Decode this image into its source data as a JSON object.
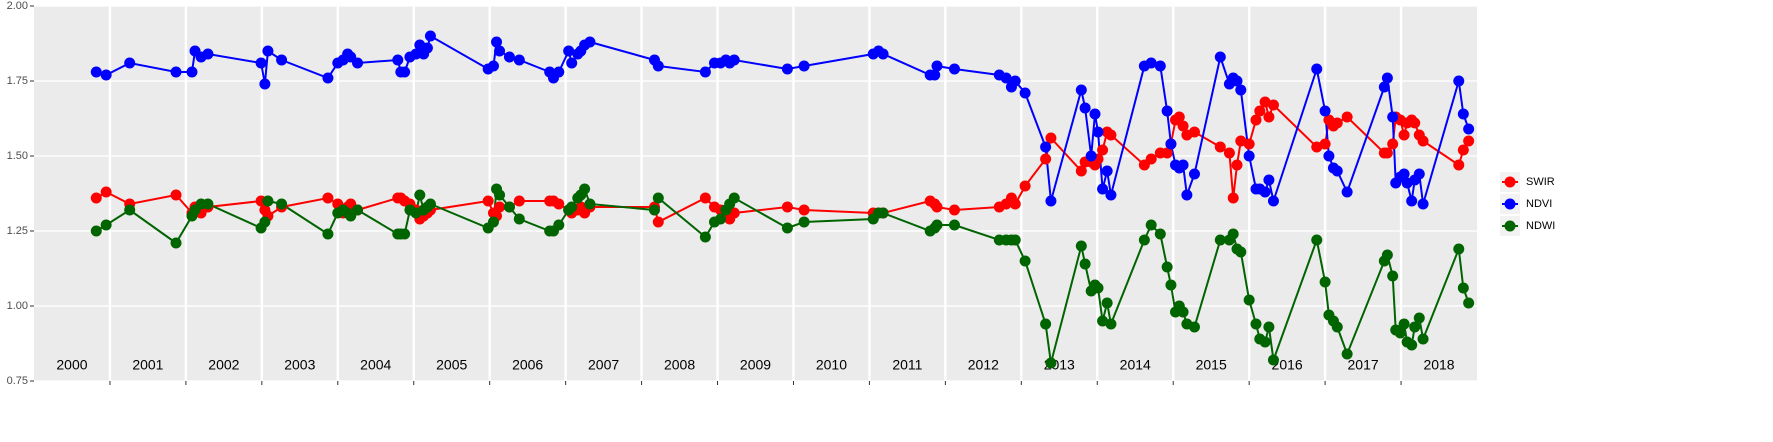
{
  "chart_data": {
    "type": "line",
    "x": [
      2000.82,
      2000.95,
      2001.26,
      2001.87,
      2002.08,
      2002.12,
      2002.2,
      2002.29,
      2002.99,
      2003.04,
      2003.08,
      2003.26,
      2003.87,
      2004.0,
      2004.07,
      2004.13,
      2004.17,
      2004.26,
      2004.79,
      2004.83,
      2004.88,
      2004.95,
      2005.03,
      2005.08,
      2005.13,
      2005.18,
      2005.22,
      2005.98,
      2006.05,
      2006.09,
      2006.13,
      2006.26,
      2006.39,
      2006.79,
      2006.84,
      2006.91,
      2007.04,
      2007.08,
      2007.16,
      2007.2,
      2007.25,
      2007.32,
      2008.17,
      2008.22,
      2008.84,
      2008.96,
      2009.04,
      2009.11,
      2009.16,
      2009.22,
      2009.92,
      2010.14,
      2011.05,
      2011.12,
      2011.18,
      2011.8,
      2011.86,
      2011.89,
      2012.12,
      2012.71,
      2012.8,
      2012.87,
      2012.92,
      2013.05,
      2013.32,
      2013.39,
      2013.79,
      2013.84,
      2013.92,
      2013.97,
      2014.01,
      2014.07,
      2014.13,
      2014.18,
      2014.62,
      2014.71,
      2014.83,
      2014.92,
      2014.97,
      2015.03,
      2015.08,
      2015.13,
      2015.18,
      2015.28,
      2015.62,
      2015.74,
      2015.79,
      2015.84,
      2015.89,
      2016.0,
      2016.09,
      2016.14,
      2016.21,
      2016.26,
      2016.32,
      2016.89,
      2017.0,
      2017.05,
      2017.11,
      2017.16,
      2017.29,
      2017.78,
      2017.82,
      2017.89,
      2017.93,
      2017.99,
      2018.04,
      2018.08,
      2018.14,
      2018.18,
      2018.24,
      2018.29,
      2018.76,
      2018.82,
      2018.89
    ],
    "series": [
      {
        "name": "SWIR",
        "color": "#ff0000",
        "values": [
          1.36,
          1.38,
          1.34,
          1.37,
          1.31,
          1.33,
          1.31,
          1.33,
          1.35,
          1.32,
          1.3,
          1.33,
          1.36,
          1.34,
          1.31,
          1.33,
          1.34,
          1.32,
          1.36,
          1.36,
          1.35,
          1.34,
          1.32,
          1.29,
          1.3,
          1.31,
          1.32,
          1.35,
          1.31,
          1.3,
          1.33,
          1.33,
          1.35,
          1.35,
          1.35,
          1.34,
          1.32,
          1.31,
          1.32,
          1.33,
          1.31,
          1.33,
          1.33,
          1.28,
          1.36,
          1.33,
          1.32,
          1.31,
          1.29,
          1.31,
          1.33,
          1.32,
          1.31,
          1.31,
          1.31,
          1.35,
          1.34,
          1.33,
          1.32,
          1.33,
          1.34,
          1.36,
          1.34,
          1.4,
          1.49,
          1.56,
          1.45,
          1.48,
          1.48,
          1.47,
          1.49,
          1.52,
          1.58,
          1.57,
          1.47,
          1.49,
          1.51,
          1.51,
          1.54,
          1.62,
          1.63,
          1.6,
          1.57,
          1.58,
          1.53,
          1.51,
          1.36,
          1.47,
          1.55,
          1.54,
          1.62,
          1.65,
          1.68,
          1.63,
          1.67,
          1.53,
          1.54,
          1.62,
          1.6,
          1.61,
          1.63,
          1.51,
          1.51,
          1.54,
          1.63,
          1.62,
          1.57,
          1.61,
          1.62,
          1.61,
          1.57,
          1.55,
          1.47,
          1.52,
          1.55
        ]
      },
      {
        "name": "NDVI",
        "color": "#0000ff",
        "values": [
          1.78,
          1.77,
          1.81,
          1.78,
          1.78,
          1.85,
          1.83,
          1.84,
          1.81,
          1.74,
          1.85,
          1.82,
          1.76,
          1.81,
          1.82,
          1.84,
          1.83,
          1.81,
          1.82,
          1.78,
          1.78,
          1.83,
          1.84,
          1.87,
          1.84,
          1.86,
          1.9,
          1.79,
          1.8,
          1.88,
          1.85,
          1.83,
          1.82,
          1.78,
          1.76,
          1.78,
          1.85,
          1.81,
          1.84,
          1.85,
          1.87,
          1.88,
          1.82,
          1.8,
          1.78,
          1.81,
          1.81,
          1.82,
          1.81,
          1.82,
          1.79,
          1.8,
          1.84,
          1.85,
          1.84,
          1.77,
          1.77,
          1.8,
          1.79,
          1.77,
          1.76,
          1.73,
          1.75,
          1.71,
          1.53,
          1.35,
          1.72,
          1.66,
          1.5,
          1.64,
          1.58,
          1.39,
          1.45,
          1.37,
          1.8,
          1.81,
          1.8,
          1.65,
          1.54,
          1.47,
          1.46,
          1.47,
          1.37,
          1.44,
          1.83,
          1.74,
          1.76,
          1.75,
          1.72,
          1.5,
          1.39,
          1.39,
          1.38,
          1.42,
          1.35,
          1.79,
          1.65,
          1.5,
          1.46,
          1.45,
          1.38,
          1.73,
          1.76,
          1.63,
          1.41,
          1.43,
          1.44,
          1.41,
          1.35,
          1.42,
          1.44,
          1.34,
          1.75,
          1.64,
          1.59
        ]
      },
      {
        "name": "NDWI",
        "color": "#006400",
        "values": [
          1.25,
          1.27,
          1.32,
          1.21,
          1.3,
          1.32,
          1.34,
          1.34,
          1.26,
          1.28,
          1.35,
          1.34,
          1.24,
          1.31,
          1.32,
          1.31,
          1.3,
          1.32,
          1.24,
          1.24,
          1.24,
          1.32,
          1.31,
          1.37,
          1.32,
          1.33,
          1.34,
          1.26,
          1.28,
          1.39,
          1.37,
          1.33,
          1.29,
          1.25,
          1.25,
          1.27,
          1.32,
          1.33,
          1.36,
          1.37,
          1.39,
          1.34,
          1.32,
          1.36,
          1.23,
          1.28,
          1.29,
          1.32,
          1.34,
          1.36,
          1.26,
          1.28,
          1.29,
          1.31,
          1.31,
          1.25,
          1.26,
          1.27,
          1.27,
          1.22,
          1.22,
          1.22,
          1.22,
          1.15,
          0.94,
          0.81,
          1.2,
          1.14,
          1.05,
          1.07,
          1.06,
          0.95,
          1.01,
          0.94,
          1.22,
          1.27,
          1.24,
          1.13,
          1.07,
          0.98,
          1.0,
          0.98,
          0.94,
          0.93,
          1.22,
          1.22,
          1.24,
          1.19,
          1.18,
          1.02,
          0.94,
          0.89,
          0.88,
          0.93,
          0.82,
          1.22,
          1.08,
          0.97,
          0.95,
          0.93,
          0.84,
          1.15,
          1.17,
          1.1,
          0.92,
          0.91,
          0.94,
          0.88,
          0.87,
          0.93,
          0.96,
          0.89,
          1.19,
          1.06,
          1.01
        ]
      }
    ],
    "xlim": [
      2000,
      2019
    ],
    "xticks": [
      2000,
      2001,
      2002,
      2003,
      2004,
      2005,
      2006,
      2007,
      2008,
      2009,
      2010,
      2011,
      2012,
      2013,
      2014,
      2015,
      2016,
      2017,
      2018
    ],
    "ylim": [
      0.75,
      2.0
    ],
    "yticks": [
      0.75,
      {
        "value": 1.0,
        "label": "1.00"
      },
      1.25,
      {
        "value": 1.5,
        "label": "1.50"
      },
      1.75,
      {
        "value": 2.0,
        "label": "2.00"
      }
    ],
    "grid": true,
    "legend": "right"
  }
}
